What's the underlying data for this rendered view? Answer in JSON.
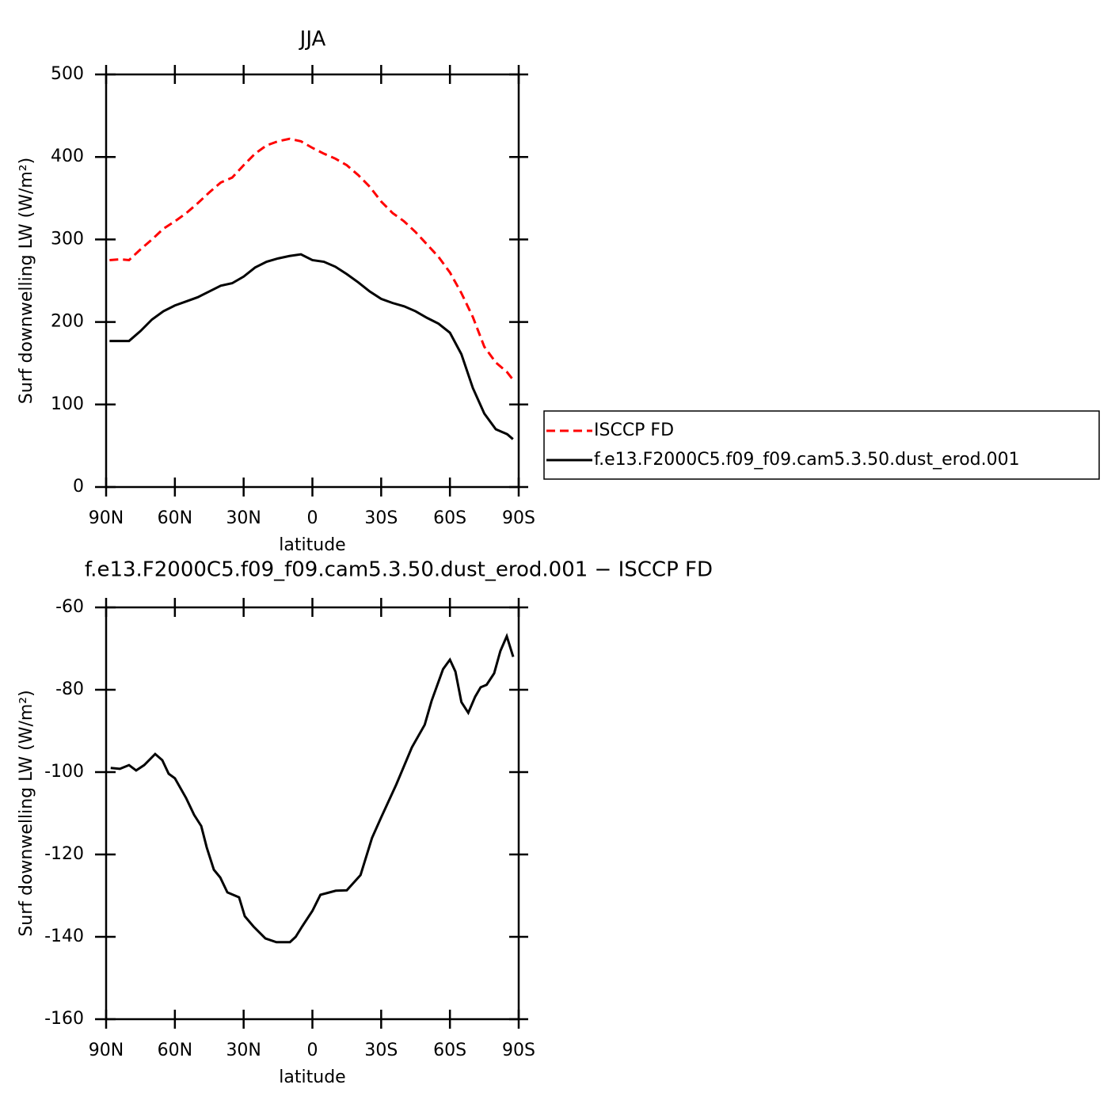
{
  "chart_data": [
    {
      "type": "line",
      "title": "JJA",
      "x": [
        88.5,
        84,
        80,
        75,
        70,
        65,
        60,
        55,
        50,
        45,
        40,
        35,
        30,
        25,
        20,
        15,
        10,
        5,
        0,
        -5,
        -10,
        -15,
        -20,
        -25,
        -30,
        -35,
        -40,
        -45,
        -50,
        -55,
        -60,
        -65,
        -70,
        -75,
        -80,
        -85,
        -87.5
      ],
      "series": [
        {
          "name": "ISCCP FD",
          "color": "#ff0000",
          "dashed": true,
          "values": [
            275,
            276,
            275,
            288,
            300,
            313,
            322,
            332,
            344,
            357,
            369,
            375,
            390,
            404,
            414,
            419,
            422,
            419,
            411,
            404,
            398,
            390,
            378,
            364,
            346,
            332,
            322,
            309,
            294,
            279,
            260,
            235,
            206,
            170,
            151,
            139,
            130
          ]
        },
        {
          "name": "f.e13.F2000C5.f09_f09.cam5.3.50.dust_erod.001",
          "color": "#000000",
          "dashed": false,
          "values": [
            177,
            177,
            177,
            189,
            203,
            213,
            220,
            225,
            230,
            237,
            244,
            247,
            255,
            266,
            273,
            277,
            280,
            282,
            275,
            273,
            267,
            258,
            248,
            237,
            228,
            223,
            219,
            213,
            205,
            198,
            187,
            161,
            120,
            89,
            70,
            64,
            58
          ]
        }
      ],
      "xlabel": "latitude",
      "ylabel": "Surf downwelling LW (W/m²)",
      "xlim": [
        90,
        -90
      ],
      "ylim": [
        0,
        500
      ],
      "xticks": [
        {
          "value": 90,
          "label": "90N"
        },
        {
          "value": 60,
          "label": "60N"
        },
        {
          "value": 30,
          "label": "30N"
        },
        0,
        {
          "value": -30,
          "label": "30S"
        },
        {
          "value": -60,
          "label": "60S"
        },
        {
          "value": -90,
          "label": "90S"
        }
      ],
      "yticks": [
        0,
        100,
        200,
        300,
        400,
        500
      ],
      "legend": "right"
    },
    {
      "type": "line",
      "title": "f.e13.F2000C5.f09_f09.cam5.3.50.dust_erod.001 − ISCCP FD",
      "x": [
        88,
        84,
        80,
        76.9,
        73.4,
        68.6,
        65.5,
        62.7,
        60,
        55.1,
        51.6,
        48.5,
        46.1,
        43,
        40.2,
        37.1,
        32,
        29.5,
        25.7,
        20.5,
        15.7,
        9.8,
        7.3,
        4.5,
        0,
        -3.5,
        -6.2,
        -10.2,
        -15,
        -21,
        -26,
        -30,
        -36.6,
        -43.4,
        -49,
        -52,
        -57,
        -60,
        -62.4,
        -65,
        -68,
        -71,
        -73.4,
        -76,
        -79.3,
        -82,
        -84.8,
        -87.6
      ],
      "series": [
        {
          "color": "#000000",
          "dashed": false,
          "values": [
            -99,
            -99.2,
            -98.3,
            -99.6,
            -98.3,
            -95.6,
            -97.1,
            -100.4,
            -101.5,
            -106.3,
            -110.4,
            -113.1,
            -118.3,
            -123.7,
            -125.6,
            -129.2,
            -130.4,
            -135,
            -137.5,
            -140.4,
            -141.3,
            -141.3,
            -140,
            -137.5,
            -133.7,
            -129.8,
            -129.4,
            -128.8,
            -128.7,
            -125,
            -116,
            -111,
            -103,
            -94,
            -88.5,
            -82.7,
            -75,
            -72.7,
            -75.6,
            -83,
            -85.6,
            -81.7,
            -79.4,
            -78.8,
            -76,
            -70.6,
            -67,
            -72
          ]
        }
      ],
      "xlabel": "latitude",
      "ylabel": "Surf downwelling LW (W/m²)",
      "xlim": [
        90,
        -90
      ],
      "ylim": [
        -160,
        -60
      ],
      "xticks": [
        {
          "value": 90,
          "label": "90N"
        },
        {
          "value": 60,
          "label": "60N"
        },
        {
          "value": 30,
          "label": "30N"
        },
        0,
        {
          "value": -30,
          "label": "30S"
        },
        {
          "value": -60,
          "label": "60S"
        },
        {
          "value": -90,
          "label": "90S"
        }
      ],
      "yticks": [
        -160,
        -140,
        -120,
        -100,
        -80,
        -60
      ]
    }
  ]
}
